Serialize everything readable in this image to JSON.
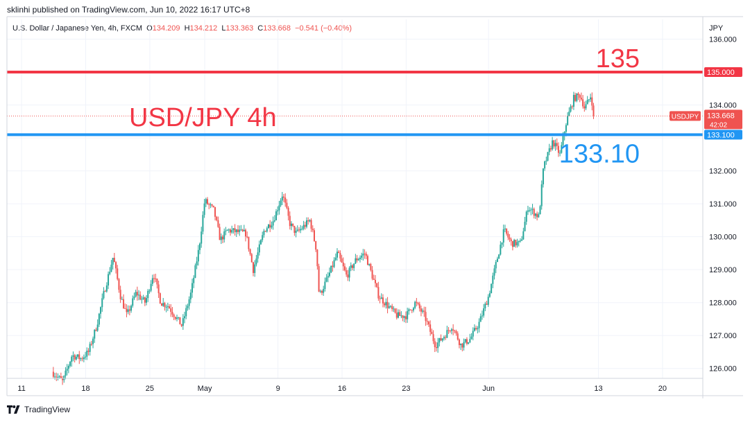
{
  "header": {
    "text": "sklinhi published on TradingView.com, Jun 10, 2022 16:17 UTC+8"
  },
  "legend": {
    "instrument": "U.S. Dollar / Japanese Yen, 4h, FXCM",
    "o_label": "O",
    "o_value": "134.209",
    "h_label": "H",
    "h_value": "134.212",
    "l_label": "L",
    "l_value": "133.363",
    "c_label": "C",
    "c_value": "133.668",
    "change": "−0.541 (−0.40%)"
  },
  "footer": {
    "brand": "TradingView",
    "logo_icon": "tradingview-logo-icon"
  },
  "chart_data": {
    "type": "candlestick",
    "symbol": "USDJPY",
    "currency_label": "JPY",
    "ylim": [
      125.7,
      136.6
    ],
    "y_ticks": [
      "126.000",
      "127.000",
      "128.000",
      "129.000",
      "130.000",
      "131.000",
      "132.000",
      "133.000",
      "134.000",
      "135.000",
      "136.000"
    ],
    "x_ticks": [
      {
        "label": "11",
        "day": 11
      },
      {
        "label": "18",
        "day": 18
      },
      {
        "label": "25",
        "day": 25
      },
      {
        "label": "May",
        "day": 31
      },
      {
        "label": "9",
        "day": 39
      },
      {
        "label": "16",
        "day": 46
      },
      {
        "label": "23",
        "day": 53
      },
      {
        "label": "Jun",
        "day": 62
      },
      {
        "label": "13",
        "day": 74
      },
      {
        "label": "20",
        "day": 81
      }
    ],
    "x_range_days": [
      9.4,
      85.4
    ],
    "price_path": [
      [
        14.3,
        125.9
      ],
      [
        15.5,
        125.6
      ],
      [
        16.5,
        126.4
      ],
      [
        17.5,
        126.3
      ],
      [
        18.3,
        126.5
      ],
      [
        19.2,
        127.3
      ],
      [
        20,
        128.3
      ],
      [
        21,
        129.4
      ],
      [
        21.8,
        128.2
      ],
      [
        22.5,
        127.6
      ],
      [
        23.5,
        128.3
      ],
      [
        24.5,
        128.0
      ],
      [
        25.4,
        128.9
      ],
      [
        26.2,
        128.0
      ],
      [
        27,
        127.9
      ],
      [
        28.5,
        127.3
      ],
      [
        29.5,
        128.3
      ],
      [
        30.4,
        129.7
      ],
      [
        31,
        131.1
      ],
      [
        32,
        130.8
      ],
      [
        32.7,
        129.9
      ],
      [
        33.5,
        130.2
      ],
      [
        35.5,
        130.1
      ],
      [
        36.3,
        129.0
      ],
      [
        37.5,
        130.2
      ],
      [
        38.5,
        130.5
      ],
      [
        39.5,
        131.3
      ],
      [
        40.3,
        130.4
      ],
      [
        41,
        130.1
      ],
      [
        42.5,
        130.5
      ],
      [
        43.2,
        129.6
      ],
      [
        43.5,
        128.2
      ],
      [
        44.5,
        128.8
      ],
      [
        45.5,
        129.5
      ],
      [
        46.5,
        128.8
      ],
      [
        47.5,
        129.3
      ],
      [
        48.5,
        129.5
      ],
      [
        50,
        128.2
      ],
      [
        51,
        127.9
      ],
      [
        52,
        127.6
      ],
      [
        53,
        127.6
      ],
      [
        54,
        128.0
      ],
      [
        55,
        127.6
      ],
      [
        56.2,
        126.7
      ],
      [
        57.2,
        127.0
      ],
      [
        58,
        127.3
      ],
      [
        59,
        126.7
      ],
      [
        60,
        126.9
      ],
      [
        61,
        127.4
      ],
      [
        62,
        128.2
      ],
      [
        63,
        129.4
      ],
      [
        63.7,
        130.2
      ],
      [
        64.5,
        129.8
      ],
      [
        65.5,
        129.8
      ],
      [
        66.3,
        130.9
      ],
      [
        67.5,
        130.6
      ],
      [
        68,
        132.1
      ],
      [
        69,
        132.9
      ],
      [
        69.8,
        132.5
      ],
      [
        70.5,
        133.5
      ],
      [
        71.3,
        134.2
      ],
      [
        72,
        134.3
      ],
      [
        72.5,
        133.9
      ],
      [
        73.2,
        134.3
      ],
      [
        73.5,
        133.67
      ]
    ],
    "last_price": {
      "value": 133.668,
      "label": "133.668",
      "countdown": "42:02",
      "symbol_tag": "USDJPY"
    },
    "levels": [
      {
        "value": 135.0,
        "price_label": "135.000",
        "annotation": "135",
        "color": "#f23645"
      },
      {
        "value": 133.1,
        "price_label": "133.100",
        "annotation": "133.10",
        "color": "#2196f3"
      }
    ],
    "annotation_title": "USD/JPY 4h",
    "colors": {
      "up": "#26a69a",
      "down": "#ef5350",
      "red_line": "#f23645",
      "blue_line": "#2196f3"
    }
  }
}
